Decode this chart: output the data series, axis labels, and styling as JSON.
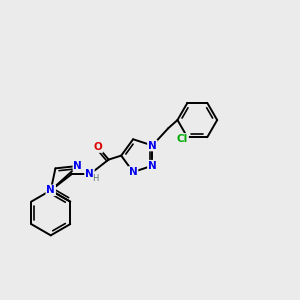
{
  "bg_color": "#ebebeb",
  "bond_color": "#000000",
  "bond_width": 1.4,
  "atom_colors": {
    "N": "#0000ee",
    "O": "#dd0000",
    "Cl": "#00aa00",
    "H": "#607070"
  },
  "font_size": 7.5
}
